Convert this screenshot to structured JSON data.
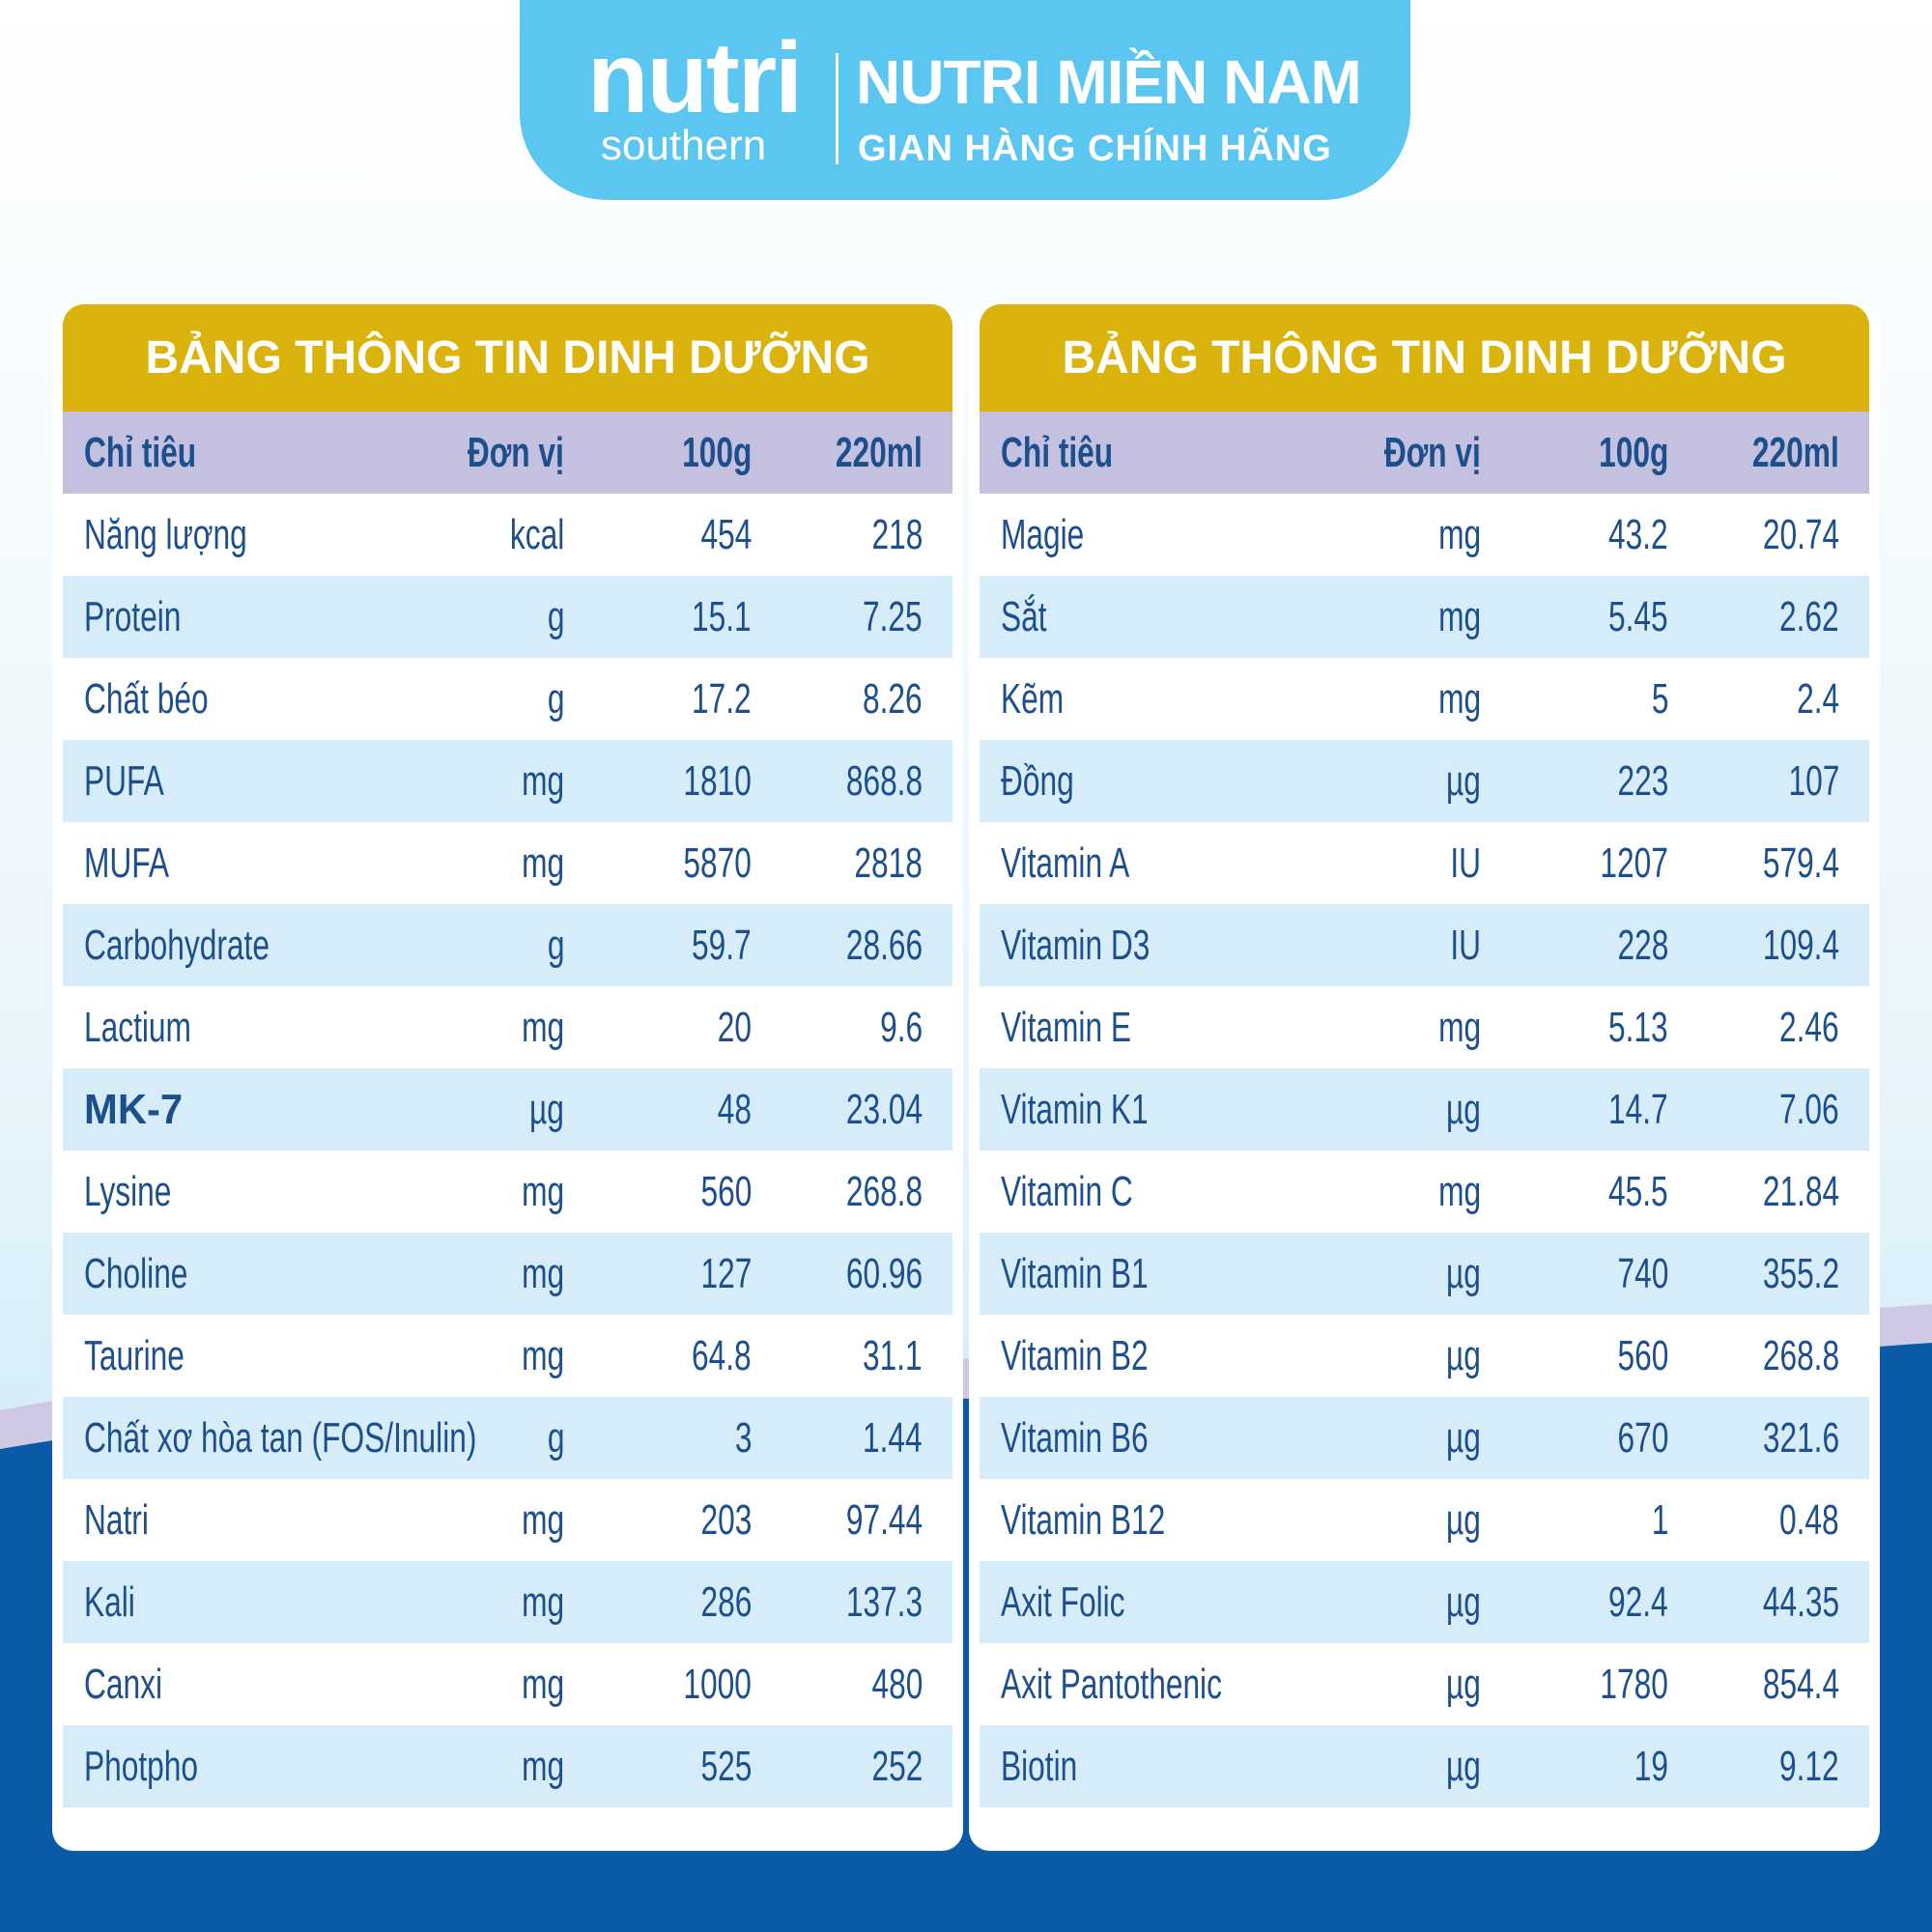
{
  "header": {
    "logo_main": "nutri",
    "logo_sub": "southern",
    "store_name": "NUTRI MIỀN NAM",
    "store_tagline": "GIAN HÀNG CHÍNH HÃNG"
  },
  "tables": [
    {
      "title": "BẢNG THÔNG TIN DINH DƯỠNG",
      "columns": [
        "Chỉ tiêu",
        "Đơn vị",
        "100g",
        "220ml"
      ],
      "rows": [
        [
          "Năng lượng",
          "kcal",
          "454",
          "218"
        ],
        [
          "Protein",
          "g",
          "15.1",
          "7.25"
        ],
        [
          "Chất béo",
          "g",
          "17.2",
          "8.26"
        ],
        [
          "PUFA",
          "mg",
          "1810",
          "868.8"
        ],
        [
          "MUFA",
          "mg",
          "5870",
          "2818"
        ],
        [
          "Carbohydrate",
          "g",
          "59.7",
          "28.66"
        ],
        [
          "Lactium",
          "mg",
          "20",
          "9.6"
        ],
        [
          "MK-7",
          "µg",
          "48",
          "23.04"
        ],
        [
          "Lysine",
          "mg",
          "560",
          "268.8"
        ],
        [
          "Choline",
          "mg",
          "127",
          "60.96"
        ],
        [
          "Taurine",
          "mg",
          "64.8",
          "31.1"
        ],
        [
          "Chất xơ hòa tan (FOS/Inulin)",
          "g",
          "3",
          "1.44"
        ],
        [
          "Natri",
          "mg",
          "203",
          "97.44"
        ],
        [
          "Kali",
          "mg",
          "286",
          "137.3"
        ],
        [
          "Canxi",
          "mg",
          "1000",
          "480"
        ],
        [
          "Photpho",
          "mg",
          "525",
          "252"
        ]
      ]
    },
    {
      "title": "BẢNG THÔNG TIN DINH DƯỠNG",
      "columns": [
        "Chỉ tiêu",
        "Đơn vị",
        "100g",
        "220ml"
      ],
      "rows": [
        [
          "Magie",
          "mg",
          "43.2",
          "20.74"
        ],
        [
          "Sắt",
          "mg",
          "5.45",
          "2.62"
        ],
        [
          "Kẽm",
          "mg",
          "5",
          "2.4"
        ],
        [
          "Đồng",
          "µg",
          "223",
          "107"
        ],
        [
          "Vitamin A",
          "IU",
          "1207",
          "579.4"
        ],
        [
          "Vitamin D3",
          "IU",
          "228",
          "109.4"
        ],
        [
          "Vitamin E",
          "mg",
          "5.13",
          "2.46"
        ],
        [
          "Vitamin K1",
          "µg",
          "14.7",
          "7.06"
        ],
        [
          "Vitamin C",
          "mg",
          "45.5",
          "21.84"
        ],
        [
          "Vitamin B1",
          "µg",
          "740",
          "355.2"
        ],
        [
          "Vitamin B2",
          "µg",
          "560",
          "268.8"
        ],
        [
          "Vitamin B6",
          "µg",
          "670",
          "321.6"
        ],
        [
          "Vitamin B12",
          "µg",
          "1",
          "0.48"
        ],
        [
          "Axit Folic",
          "µg",
          "92.4",
          "44.35"
        ],
        [
          "Axit Pantothenic",
          "µg",
          "1780",
          "854.4"
        ],
        [
          "Biotin",
          "µg",
          "19",
          "9.12"
        ]
      ]
    }
  ]
}
